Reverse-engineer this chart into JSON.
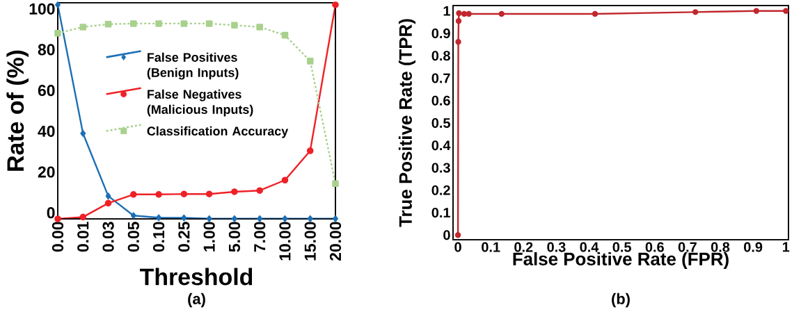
{
  "chart_data": [
    {
      "type": "line",
      "xlabel": "Threshold",
      "ylabel": "Rate of (%)",
      "annotations": [
        "(a)"
      ],
      "categories": [
        "0.00",
        "0.01",
        "0.03",
        "0.05",
        "0.10",
        "0.25",
        "1.00",
        "5.00",
        "7.00",
        "10.00",
        "15.00",
        "20.00"
      ],
      "ylim": [
        -3,
        103
      ],
      "yticks": [
        0,
        20,
        40,
        60,
        80,
        100
      ],
      "legend": "center",
      "grid": false,
      "series": [
        {
          "name": "False Positives (Benign Inputs)",
          "color": "#1c6fb5",
          "marker": "diamond",
          "line_style": "solid",
          "values": [
            102,
            38.9,
            8.2,
            -1.4,
            -2.4,
            -2.5,
            -2.9,
            -2.9,
            -2.9,
            -2.9,
            -2.9,
            -2.9
          ]
        },
        {
          "name": "False Negatives (Malicious Inputs)",
          "color": "#ee2127",
          "marker": "circle",
          "line_style": "solid",
          "values": [
            -3,
            -2.1,
            4.7,
            9.0,
            9.0,
            9.2,
            9.2,
            10.3,
            10.9,
            16.0,
            30.4,
            102
          ]
        },
        {
          "name": "Classification Accuracy",
          "color": "#a9d18e",
          "marker": "square",
          "line_style": "dashed",
          "values": [
            88.1,
            91.1,
            92.5,
            92.8,
            92.8,
            92.8,
            92.8,
            92.0,
            91.1,
            87.1,
            74.4,
            14.3
          ]
        }
      ]
    },
    {
      "type": "line",
      "xlabel": "False Positive Rate (FPR)",
      "ylabel": "True Positive Rate (TPR)",
      "annotations": [
        "(b)"
      ],
      "xlim": [
        -0.015,
        1.008
      ],
      "xticks": [
        0,
        0.1,
        0.2,
        0.3,
        0.4,
        0.5,
        0.6,
        0.7,
        0.8,
        0.9,
        1
      ],
      "ylim": [
        -0.021,
        1.024
      ],
      "yticks": [
        0,
        0.1,
        0.2,
        0.3,
        0.4,
        0.5,
        0.6,
        0.7,
        0.8,
        0.9,
        1
      ],
      "grid": false,
      "marker": "circle",
      "line_style": "solid",
      "series": [
        {
          "color": "#c1272d",
          "x": [
            0,
            0.001,
            0.002,
            0.003,
            0.019,
            0.033,
            0.133,
            0.418,
            0.724,
            0.91,
            1.0
          ],
          "values": [
            0,
            0.862,
            0.955,
            0.99,
            0.987,
            0.987,
            0.987,
            0.987,
            0.995,
            1.0,
            1.0
          ]
        }
      ]
    }
  ]
}
